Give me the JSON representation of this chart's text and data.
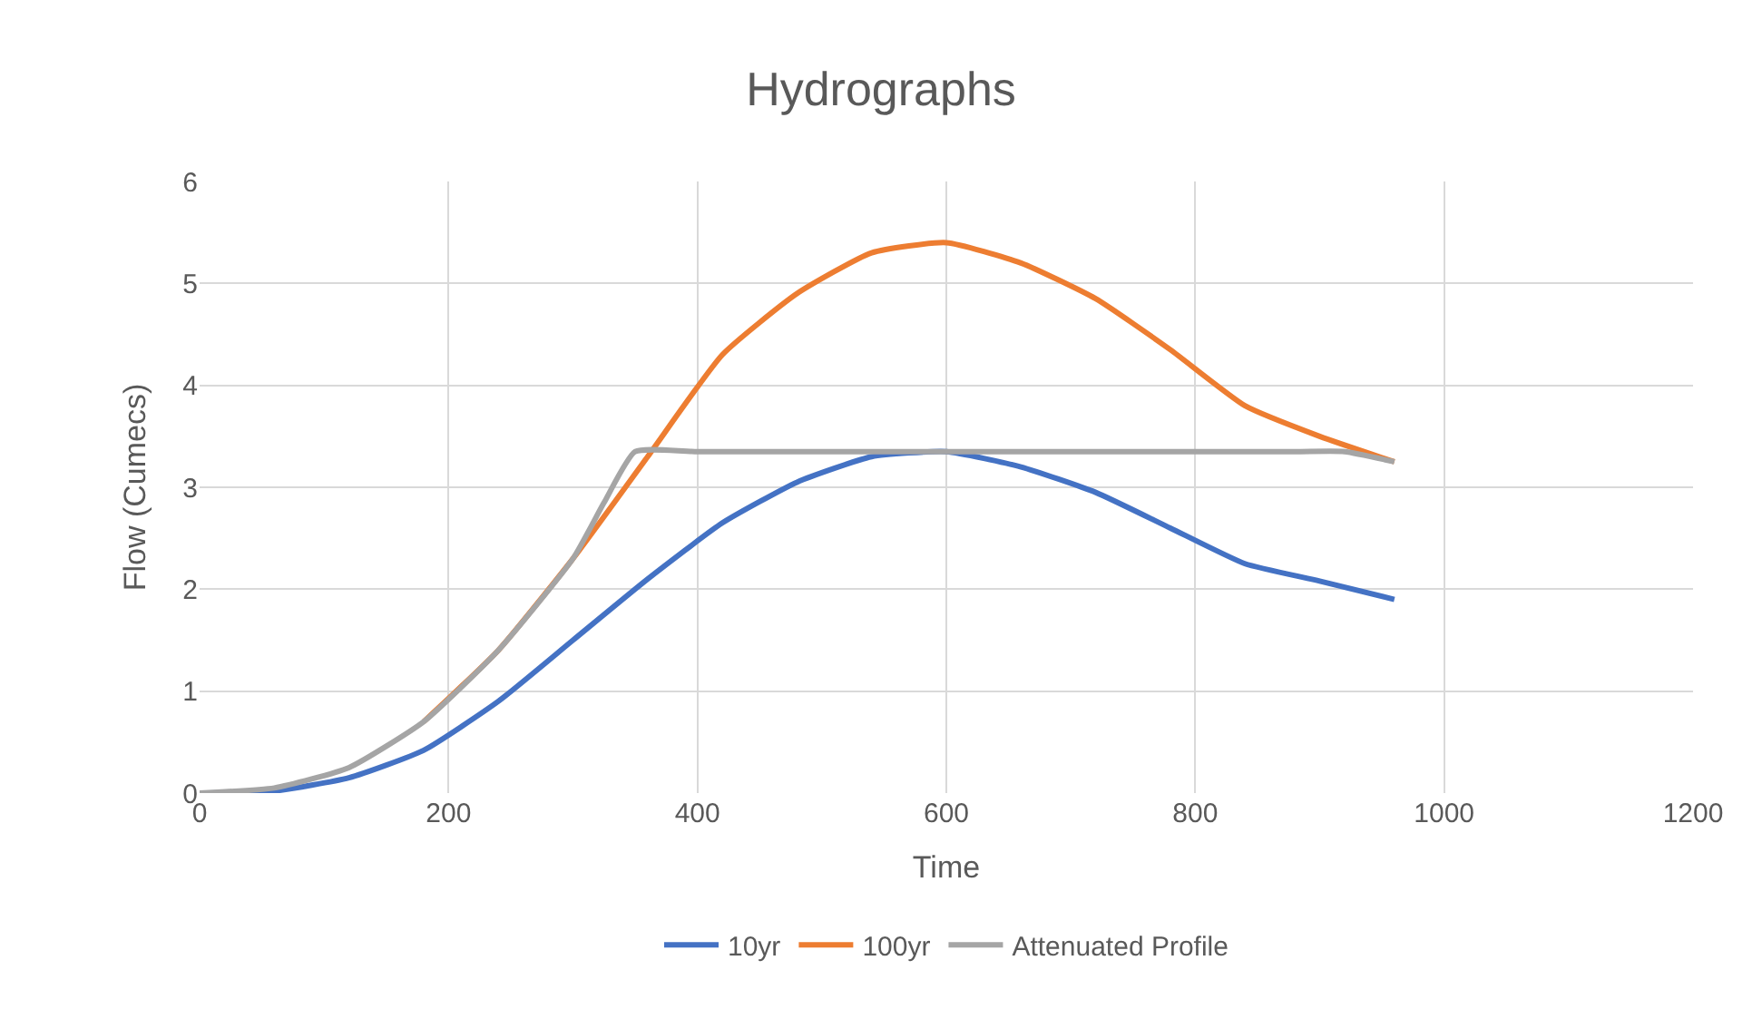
{
  "chart_data": {
    "type": "line",
    "title": "Hydrographs",
    "xlabel": "Time",
    "ylabel": "Flow (Cumecs)",
    "xlim": [
      0,
      1200
    ],
    "xticks": [
      0,
      200,
      400,
      600,
      800,
      1000,
      1200
    ],
    "ylim": [
      0,
      6
    ],
    "yticks": [
      0,
      1,
      2,
      3,
      4,
      5,
      6
    ],
    "grid": true,
    "legend": "bottom",
    "marker": "none",
    "line_style": "solid",
    "x": [
      0,
      60,
      120,
      180,
      240,
      300,
      360,
      420,
      480,
      540,
      600,
      660,
      720,
      780,
      840,
      900,
      960
    ],
    "series": [
      {
        "name": "10yr",
        "color": "#4472c4",
        "values": [
          0,
          0.02,
          0.15,
          0.42,
          0.9,
          1.5,
          2.1,
          2.65,
          3.05,
          3.3,
          3.35,
          3.2,
          2.95,
          2.6,
          2.25,
          2.08,
          1.9
        ]
      },
      {
        "name": "100yr",
        "color": "#ed7d31",
        "values": [
          null,
          null,
          null,
          0.7,
          1.4,
          2.3,
          3.3,
          4.3,
          4.9,
          5.3,
          5.4,
          5.2,
          4.85,
          4.35,
          3.8,
          3.5,
          3.25
        ]
      },
      {
        "name": "Attenuated Profile",
        "color": "#a5a5a5",
        "x": [
          0,
          60,
          120,
          180,
          240,
          300,
          325,
          350,
          400,
          880,
          920,
          960
        ],
        "values": [
          0,
          0.05,
          0.25,
          0.7,
          1.4,
          2.3,
          2.85,
          3.35,
          3.35,
          3.35,
          3.35,
          3.25
        ]
      }
    ]
  }
}
